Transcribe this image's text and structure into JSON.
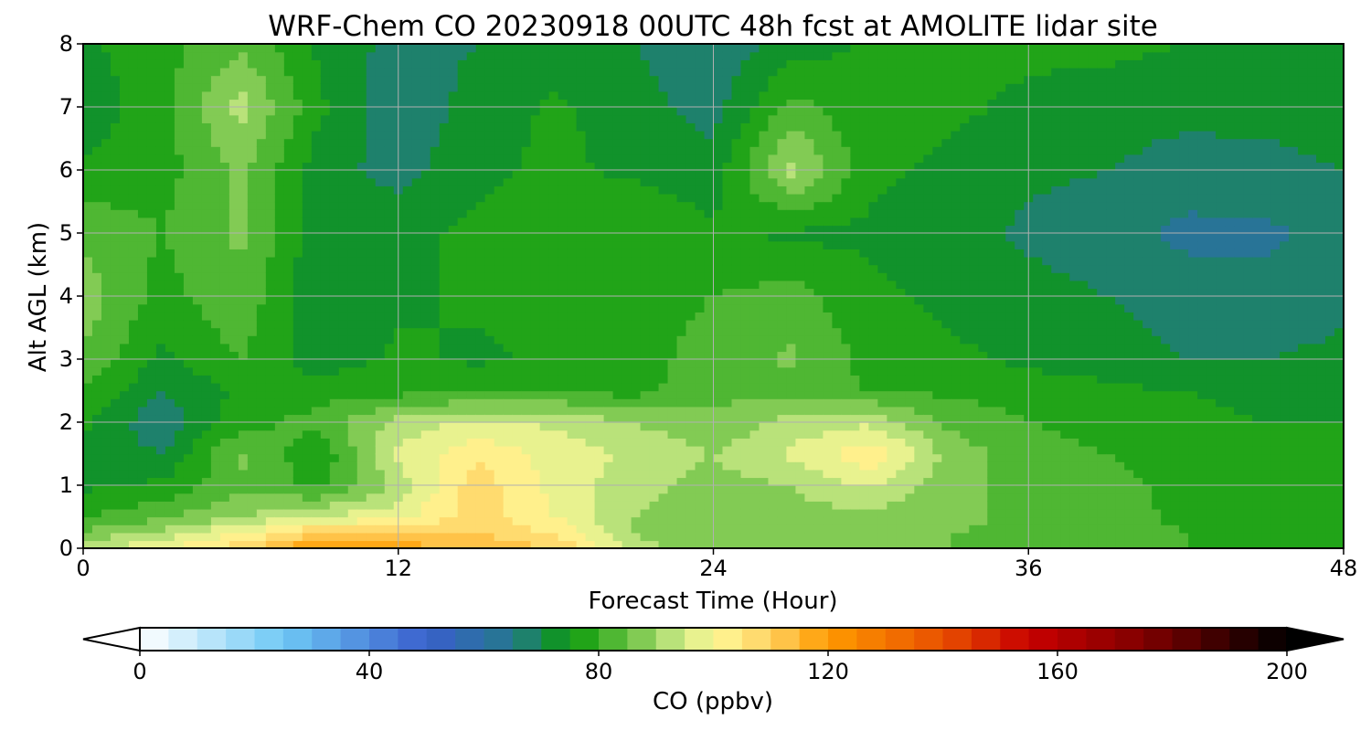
{
  "chart_data": {
    "type": "heatmap",
    "title": "WRF-Chem CO  20230918 00UTC 48h fcst at AMOLITE lidar site",
    "xlabel": "Forecast Time (Hour)",
    "ylabel": "Alt AGL (km)",
    "xlim": [
      0,
      48
    ],
    "ylim": [
      0,
      8
    ],
    "xticks": [
      0,
      12,
      24,
      36,
      48
    ],
    "yticks": [
      0,
      1,
      2,
      3,
      4,
      5,
      6,
      7,
      8
    ],
    "grid": true,
    "x": [
      0,
      3,
      6,
      9,
      12,
      15,
      18,
      21,
      24,
      27,
      30,
      33,
      36,
      39,
      42,
      45,
      48
    ],
    "y": [
      0,
      0.25,
      0.5,
      1,
      1.5,
      2,
      2.5,
      3,
      4,
      5,
      6,
      7,
      8
    ],
    "values": [
      [
        92,
        100,
        108,
        122,
        118,
        115,
        110,
        92,
        86,
        87,
        86,
        85,
        84,
        82,
        80,
        79,
        78
      ],
      [
        86,
        92,
        100,
        110,
        108,
        110,
        104,
        90,
        85,
        86,
        86,
        85,
        84,
        82,
        80,
        78,
        77
      ],
      [
        80,
        84,
        90,
        96,
        98,
        108,
        100,
        90,
        86,
        88,
        88,
        86,
        84,
        82,
        79,
        78,
        77
      ],
      [
        74,
        76,
        84,
        78,
        92,
        108,
        98,
        92,
        88,
        90,
        96,
        86,
        84,
        81,
        79,
        77,
        76
      ],
      [
        73,
        70,
        86,
        76,
        96,
        104,
        98,
        94,
        90,
        96,
        104,
        88,
        82,
        80,
        78,
        76,
        75
      ],
      [
        76,
        66,
        78,
        82,
        92,
        96,
        94,
        90,
        86,
        92,
        94,
        84,
        80,
        78,
        76,
        75,
        75
      ],
      [
        80,
        70,
        76,
        78,
        78,
        80,
        80,
        78,
        84,
        82,
        80,
        79,
        77,
        76,
        75,
        74,
        74
      ],
      [
        84,
        74,
        80,
        72,
        76,
        74,
        76,
        78,
        82,
        86,
        78,
        76,
        74,
        73,
        70,
        70,
        71
      ],
      [
        88,
        78,
        84,
        70,
        74,
        76,
        76,
        78,
        80,
        82,
        76,
        74,
        72,
        70,
        67,
        67,
        69
      ],
      [
        84,
        80,
        86,
        72,
        74,
        76,
        78,
        80,
        76,
        74,
        74,
        72,
        69,
        67,
        64,
        64,
        67
      ],
      [
        76,
        78,
        86,
        72,
        68,
        74,
        76,
        74,
        72,
        92,
        76,
        74,
        71,
        70,
        67,
        68,
        70
      ],
      [
        72,
        78,
        92,
        76,
        66,
        72,
        76,
        72,
        68,
        82,
        76,
        76,
        74,
        73,
        72,
        72,
        73
      ],
      [
        74,
        78,
        84,
        74,
        68,
        70,
        72,
        70,
        66,
        72,
        76,
        76,
        76,
        76,
        75,
        75,
        75
      ]
    ],
    "colorbar": {
      "label": "CO  (ppbv)",
      "min": 0,
      "max": 200,
      "step": 5,
      "ticks": [
        0,
        40,
        80,
        120,
        160,
        200
      ],
      "extend": "both",
      "stops": [
        [
          0,
          "#ffffff"
        ],
        [
          25,
          "#6ec8f5"
        ],
        [
          50,
          "#3a5fcd"
        ],
        [
          65,
          "#24788c"
        ],
        [
          75,
          "#0a9a0a"
        ],
        [
          85,
          "#66c040"
        ],
        [
          92,
          "#b4e078"
        ],
        [
          100,
          "#fffa9a"
        ],
        [
          110,
          "#ffd060"
        ],
        [
          120,
          "#ff9a00"
        ],
        [
          140,
          "#e85000"
        ],
        [
          155,
          "#c80000"
        ],
        [
          175,
          "#800000"
        ],
        [
          200,
          "#000000"
        ]
      ]
    }
  }
}
